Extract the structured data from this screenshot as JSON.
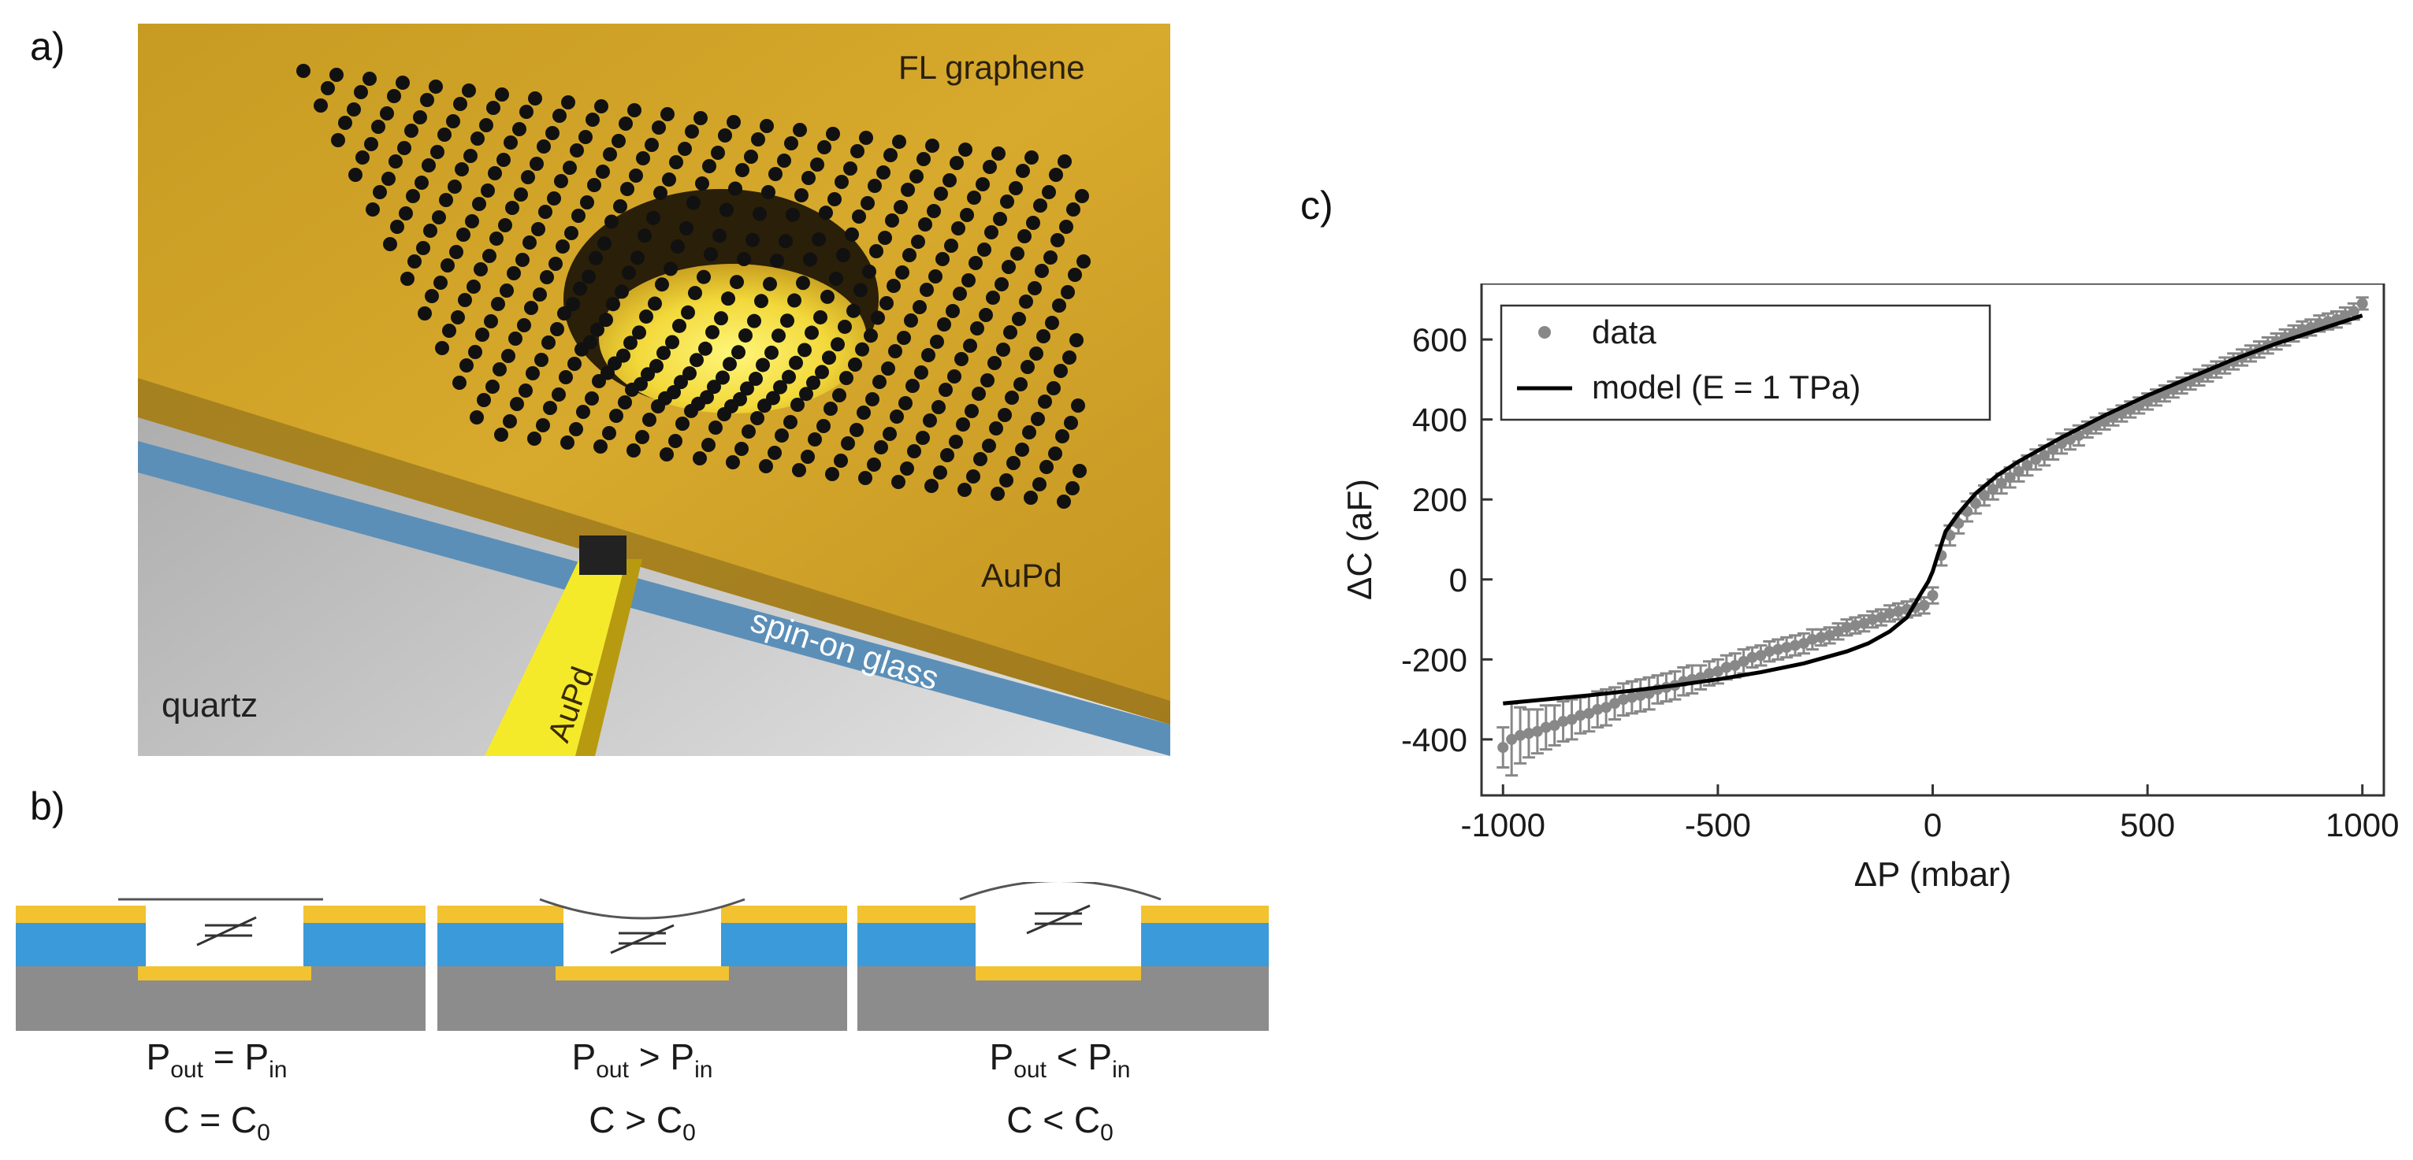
{
  "panel_labels": {
    "a": "a)",
    "b": "b)",
    "c": "c)"
  },
  "panel_a": {
    "labels": {
      "graphene": "FL graphene",
      "top_electrode": "AuPd",
      "bottom_electrode": "AuPd",
      "dielectric": "spin-on glass",
      "substrate": "quartz"
    },
    "colors": {
      "gold": "#d4a428",
      "glass": "#5b8fb8",
      "quartz": "#cfcfcf",
      "atom": "#111111",
      "glow": "#f5e94a"
    }
  },
  "panel_b": {
    "schematics": [
      {
        "pressure_main": "P",
        "pressure_sub1": "out",
        "relation": "=",
        "pressure_main2": "P",
        "pressure_sub2": "in",
        "cap_main": "C",
        "cap_relation": "=",
        "cap_main2": "C",
        "cap_sub": "0"
      },
      {
        "pressure_main": "P",
        "pressure_sub1": "out",
        "relation": ">",
        "pressure_main2": "P",
        "pressure_sub2": "in",
        "cap_main": "C",
        "cap_relation": ">",
        "cap_main2": "C",
        "cap_sub": "0"
      },
      {
        "pressure_main": "P",
        "pressure_sub1": "out",
        "relation": "<",
        "pressure_main2": "P",
        "pressure_sub2": "in",
        "cap_main": "C",
        "cap_relation": "<",
        "cap_main2": "C",
        "cap_sub": "0"
      }
    ],
    "colors": {
      "gold": "#f2c230",
      "blue": "#3b9ad9",
      "gray": "#8c8c8c"
    }
  },
  "chart_data": {
    "type": "scatter",
    "title": "",
    "xlabel": "ΔP (mbar)",
    "ylabel": "ΔC (aF)",
    "xlim": [
      -1050,
      1050
    ],
    "ylim": [
      -540,
      740
    ],
    "xticks": [
      -1000,
      -500,
      0,
      500,
      1000
    ],
    "yticks": [
      -400,
      -200,
      0,
      200,
      400,
      600
    ],
    "legend": {
      "position": "top-left",
      "entries": [
        "data",
        "model (E = 1 TPa)"
      ]
    },
    "series": [
      {
        "name": "data",
        "style": "points-with-errorbars",
        "color": "#888888",
        "x": [
          -1000,
          -980,
          -960,
          -940,
          -920,
          -900,
          -880,
          -860,
          -840,
          -820,
          -800,
          -780,
          -760,
          -740,
          -720,
          -700,
          -680,
          -660,
          -640,
          -620,
          -600,
          -580,
          -560,
          -540,
          -520,
          -500,
          -480,
          -460,
          -440,
          -420,
          -400,
          -380,
          -360,
          -340,
          -320,
          -300,
          -280,
          -260,
          -240,
          -220,
          -200,
          -180,
          -160,
          -140,
          -120,
          -100,
          -80,
          -60,
          -40,
          -20,
          0,
          20,
          40,
          60,
          80,
          100,
          120,
          140,
          160,
          180,
          200,
          220,
          240,
          260,
          280,
          300,
          320,
          340,
          360,
          380,
          400,
          420,
          440,
          460,
          480,
          500,
          520,
          540,
          560,
          580,
          600,
          620,
          640,
          660,
          680,
          700,
          720,
          740,
          760,
          780,
          800,
          820,
          840,
          860,
          880,
          900,
          920,
          940,
          960,
          980,
          1000
        ],
        "y": [
          -420,
          -400,
          -390,
          -385,
          -380,
          -370,
          -365,
          -355,
          -350,
          -340,
          -335,
          -325,
          -320,
          -310,
          -300,
          -295,
          -290,
          -285,
          -275,
          -270,
          -265,
          -255,
          -250,
          -245,
          -235,
          -230,
          -220,
          -215,
          -205,
          -195,
          -190,
          -180,
          -175,
          -170,
          -165,
          -160,
          -150,
          -145,
          -140,
          -130,
          -120,
          -115,
          -110,
          -100,
          -95,
          -85,
          -80,
          -75,
          -70,
          -65,
          -40,
          60,
          110,
          140,
          170,
          190,
          210,
          225,
          240,
          255,
          270,
          285,
          300,
          310,
          325,
          340,
          350,
          360,
          375,
          385,
          395,
          405,
          415,
          425,
          435,
          445,
          455,
          465,
          475,
          485,
          495,
          505,
          515,
          525,
          535,
          545,
          555,
          565,
          575,
          585,
          595,
          605,
          615,
          625,
          630,
          640,
          645,
          650,
          660,
          670,
          690
        ],
        "err": [
          50,
          90,
          70,
          60,
          55,
          55,
          50,
          50,
          50,
          45,
          45,
          45,
          45,
          40,
          40,
          40,
          40,
          40,
          35,
          35,
          35,
          35,
          35,
          30,
          30,
          30,
          30,
          30,
          30,
          25,
          25,
          25,
          25,
          25,
          25,
          25,
          25,
          20,
          20,
          20,
          20,
          20,
          20,
          20,
          20,
          20,
          20,
          20,
          20,
          20,
          20,
          25,
          25,
          25,
          25,
          25,
          25,
          25,
          25,
          25,
          25,
          25,
          25,
          25,
          25,
          25,
          25,
          25,
          20,
          20,
          20,
          20,
          20,
          20,
          20,
          20,
          20,
          20,
          20,
          20,
          20,
          20,
          20,
          20,
          20,
          20,
          20,
          20,
          20,
          20,
          20,
          20,
          20,
          20,
          20,
          20,
          20,
          20,
          20,
          20,
          15
        ]
      },
      {
        "name": "model (E = 1 TPa)",
        "style": "line",
        "color": "#000000",
        "x": [
          -1000,
          -900,
          -800,
          -700,
          -600,
          -500,
          -400,
          -300,
          -200,
          -150,
          -100,
          -60,
          -30,
          -10,
          0,
          10,
          30,
          60,
          100,
          150,
          200,
          300,
          400,
          500,
          600,
          700,
          800,
          900,
          1000
        ],
        "y": [
          -310,
          -300,
          -290,
          -278,
          -265,
          -250,
          -232,
          -210,
          -180,
          -160,
          -130,
          -95,
          -40,
          -5,
          20,
          55,
          120,
          165,
          215,
          260,
          295,
          355,
          410,
          460,
          505,
          550,
          590,
          625,
          660
        ]
      }
    ]
  }
}
